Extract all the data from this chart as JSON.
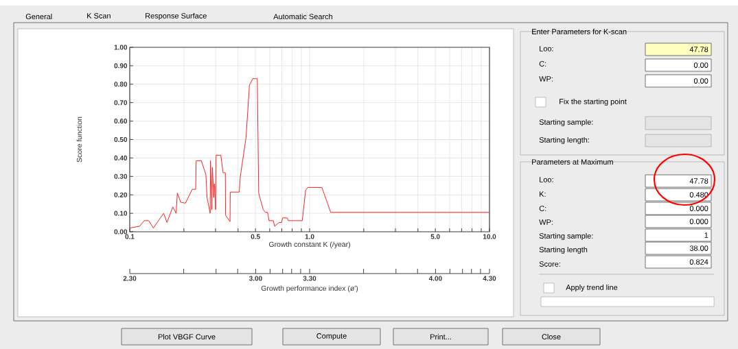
{
  "chart_data": [
    {
      "type": "line",
      "xlabel": "Growth constant K (/year)",
      "ylabel": "Score function",
      "color": "#ff2020",
      "log": "x",
      "grid": true,
      "x": [
        0.1,
        0.1134,
        0.1203,
        0.1276,
        0.1352,
        0.1543,
        0.1611,
        0.1735,
        0.181,
        0.184,
        0.192,
        0.204,
        0.2225,
        0.2325,
        0.234,
        0.25,
        0.265,
        0.269,
        0.28,
        0.281,
        0.286,
        0.288,
        0.293,
        0.296,
        0.3,
        0.302,
        0.321,
        0.33,
        0.34,
        0.341,
        0.361,
        0.362,
        0.406,
        0.412,
        0.443,
        0.463,
        0.483,
        0.512,
        0.521,
        0.552,
        0.568,
        0.584,
        0.595,
        0.628,
        0.639,
        0.676,
        0.698,
        0.708,
        0.751,
        0.762,
        0.91,
        0.95,
        0.978,
        1.17,
        1.31,
        10
      ],
      "values": [
        0.02,
        0.03,
        0.06,
        0.06,
        0.02,
        0.1,
        0.05,
        0.135,
        0.1,
        0.21,
        0.16,
        0.155,
        0.23,
        0.23,
        0.385,
        0.385,
        0.31,
        0.185,
        0.1,
        0.385,
        0.12,
        0.35,
        0.185,
        0.26,
        0.12,
        0.415,
        0.415,
        0.32,
        0.32,
        0.09,
        0.055,
        0.215,
        0.215,
        0.3,
        0.51,
        0.795,
        0.83,
        0.83,
        0.21,
        0.12,
        0.105,
        0.105,
        0.06,
        0.06,
        0.03,
        0.05,
        0.05,
        0.075,
        0.075,
        0.06,
        0.06,
        0.225,
        0.24,
        0.24,
        0.105,
        0.105
      ],
      "xlim": [
        0.1,
        10
      ],
      "ylim": [
        0,
        1
      ],
      "xticks": [
        0.1,
        {
          "value": 0.2,
          "label": null
        },
        {
          "value": 0.3,
          "label": null
        },
        {
          "value": 0.4,
          "label": null
        },
        0.5,
        {
          "value": 0.6,
          "label": null
        },
        {
          "value": 0.7,
          "label": null
        },
        {
          "value": 0.8,
          "label": null
        },
        {
          "value": 0.9,
          "label": null
        },
        {
          "value": 1,
          "label": "1.0"
        },
        {
          "value": 2,
          "label": null
        },
        {
          "value": 3,
          "label": null
        },
        {
          "value": 4,
          "label": null
        },
        {
          "value": 5,
          "label": "5.0"
        },
        {
          "value": 6,
          "label": null
        },
        {
          "value": 7,
          "label": null
        },
        {
          "value": 8,
          "label": null
        },
        {
          "value": 9,
          "label": null
        },
        {
          "value": 10,
          "label": "10.0"
        }
      ],
      "yticks": [
        {
          "value": 0,
          "label": "0.00"
        },
        {
          "value": 0.1,
          "label": "0.10"
        },
        {
          "value": 0.2,
          "label": "0.20"
        },
        {
          "value": 0.3,
          "label": "0.30"
        },
        {
          "value": 0.4,
          "label": "0.40"
        },
        {
          "value": 0.5,
          "label": "0.50"
        },
        {
          "value": 0.6,
          "label": "0.60"
        },
        {
          "value": 0.7,
          "label": "0.70"
        },
        {
          "value": 0.8,
          "label": "0.80"
        },
        {
          "value": 0.9,
          "label": "0.90"
        },
        {
          "value": 1,
          "label": "1.00"
        }
      ],
      "x2label": "Growth performance index (ø')",
      "x2lim": [
        2.3,
        4.3
      ],
      "x2ticks": [
        {
          "value": 2.3,
          "label": "2.30"
        },
        {
          "value": 2.6,
          "label": null
        },
        {
          "value": 2.78,
          "label": null
        },
        {
          "value": 2.9,
          "label": null
        },
        {
          "value": 3,
          "label": "3.00"
        },
        {
          "value": 3.08,
          "label": null
        },
        {
          "value": 3.15,
          "label": null
        },
        {
          "value": 3.2,
          "label": null
        },
        {
          "value": 3.25,
          "label": null
        },
        {
          "value": 3.3,
          "label": "3.30"
        },
        {
          "value": 3.6,
          "label": null
        },
        {
          "value": 3.78,
          "label": null
        },
        {
          "value": 3.9,
          "label": null
        },
        {
          "value": 4,
          "label": "4.00"
        },
        {
          "value": 4.08,
          "label": null
        },
        {
          "value": 4.15,
          "label": null
        },
        {
          "value": 4.2,
          "label": null
        },
        {
          "value": 4.25,
          "label": null
        },
        {
          "value": 4.3,
          "label": "4.30"
        }
      ]
    },
    {
      "type": "other",
      "annotations": [
        "General",
        "K Scan",
        "Response Surface",
        "Automatic Search",
        "Enter Parameters for K-scan",
        "Loo:",
        "47.78",
        "C:",
        "0.00",
        "WP:",
        "0.00",
        "Fix the starting point",
        "Starting sample:",
        "Starting length:",
        "Parameters at Maximum",
        "Loo:",
        "47.78",
        "K:",
        "0.480",
        "C:",
        "0.000",
        "WP:",
        "0.000",
        "Starting sample:",
        "1",
        "Starting length",
        "38.00",
        "Score:",
        "0.824",
        "Apply trend line",
        "Plot VBGF Curve",
        "Compute",
        "Print...",
        "Close"
      ]
    }
  ]
}
